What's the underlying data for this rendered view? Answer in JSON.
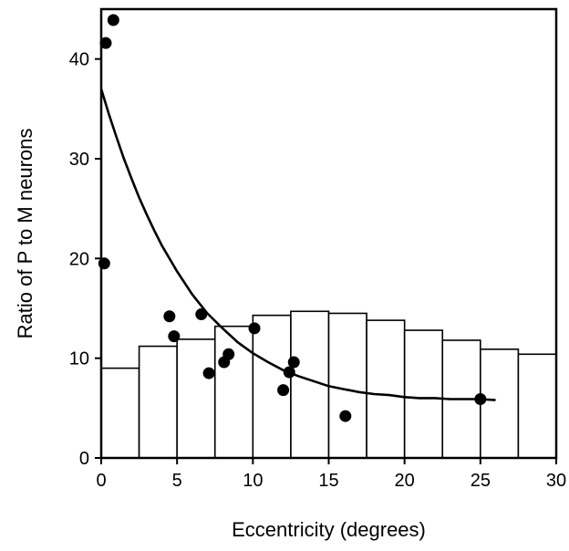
{
  "chart_data": {
    "type": "bar",
    "title": "",
    "xlabel": "Eccentricity (degrees)",
    "ylabel": "Ratio of P to M neurons",
    "xlim": [
      0,
      30
    ],
    "ylim": [
      0,
      45
    ],
    "grid": false,
    "xticks": [
      0,
      5,
      10,
      15,
      20,
      25,
      30
    ],
    "yticks": [
      0,
      10,
      20,
      30,
      40
    ],
    "histogram": {
      "bin_width": 2.5,
      "bins": [
        {
          "x0": 0.0,
          "value": 9.0
        },
        {
          "x0": 2.5,
          "value": 11.2
        },
        {
          "x0": 5.0,
          "value": 11.9
        },
        {
          "x0": 7.5,
          "value": 13.2
        },
        {
          "x0": 10.0,
          "value": 14.3
        },
        {
          "x0": 12.5,
          "value": 14.7
        },
        {
          "x0": 15.0,
          "value": 14.5
        },
        {
          "x0": 17.5,
          "value": 13.8
        },
        {
          "x0": 20.0,
          "value": 12.8
        },
        {
          "x0": 22.5,
          "value": 11.8
        },
        {
          "x0": 25.0,
          "value": 10.9
        },
        {
          "x0": 27.5,
          "value": 10.4
        }
      ]
    },
    "scatter": {
      "points": [
        {
          "x": 0.3,
          "y": 41.6
        },
        {
          "x": 0.8,
          "y": 43.9
        },
        {
          "x": 0.2,
          "y": 19.5
        },
        {
          "x": 4.5,
          "y": 14.2
        },
        {
          "x": 4.8,
          "y": 12.2
        },
        {
          "x": 6.6,
          "y": 14.4
        },
        {
          "x": 7.1,
          "y": 8.5
        },
        {
          "x": 8.1,
          "y": 9.6
        },
        {
          "x": 8.4,
          "y": 10.4
        },
        {
          "x": 10.1,
          "y": 13.0
        },
        {
          "x": 12.0,
          "y": 6.8
        },
        {
          "x": 12.4,
          "y": 8.6
        },
        {
          "x": 12.7,
          "y": 9.6
        },
        {
          "x": 16.1,
          "y": 4.2
        },
        {
          "x": 25.0,
          "y": 5.9
        }
      ]
    },
    "fit_curve": {
      "points": [
        {
          "x": 0,
          "y": 37.0
        },
        {
          "x": 0.5,
          "y": 34.5
        },
        {
          "x": 1,
          "y": 32.2
        },
        {
          "x": 1.5,
          "y": 30.0
        },
        {
          "x": 2,
          "y": 28.0
        },
        {
          "x": 2.5,
          "y": 26.1
        },
        {
          "x": 3,
          "y": 24.4
        },
        {
          "x": 3.5,
          "y": 22.8
        },
        {
          "x": 4,
          "y": 21.3
        },
        {
          "x": 5,
          "y": 18.7
        },
        {
          "x": 6,
          "y": 16.4
        },
        {
          "x": 7,
          "y": 14.5
        },
        {
          "x": 8,
          "y": 13.0
        },
        {
          "x": 9,
          "y": 11.6
        },
        {
          "x": 10,
          "y": 10.5
        },
        {
          "x": 11,
          "y": 9.6
        },
        {
          "x": 12,
          "y": 8.8
        },
        {
          "x": 13,
          "y": 8.2
        },
        {
          "x": 14,
          "y": 7.7
        },
        {
          "x": 15,
          "y": 7.2
        },
        {
          "x": 16,
          "y": 6.9
        },
        {
          "x": 17,
          "y": 6.6
        },
        {
          "x": 18,
          "y": 6.4
        },
        {
          "x": 19,
          "y": 6.3
        },
        {
          "x": 20,
          "y": 6.1
        },
        {
          "x": 21,
          "y": 6.0
        },
        {
          "x": 22,
          "y": 6.0
        },
        {
          "x": 23,
          "y": 5.9
        },
        {
          "x": 24,
          "y": 5.9
        },
        {
          "x": 25,
          "y": 5.9
        },
        {
          "x": 26,
          "y": 5.8
        }
      ]
    }
  }
}
